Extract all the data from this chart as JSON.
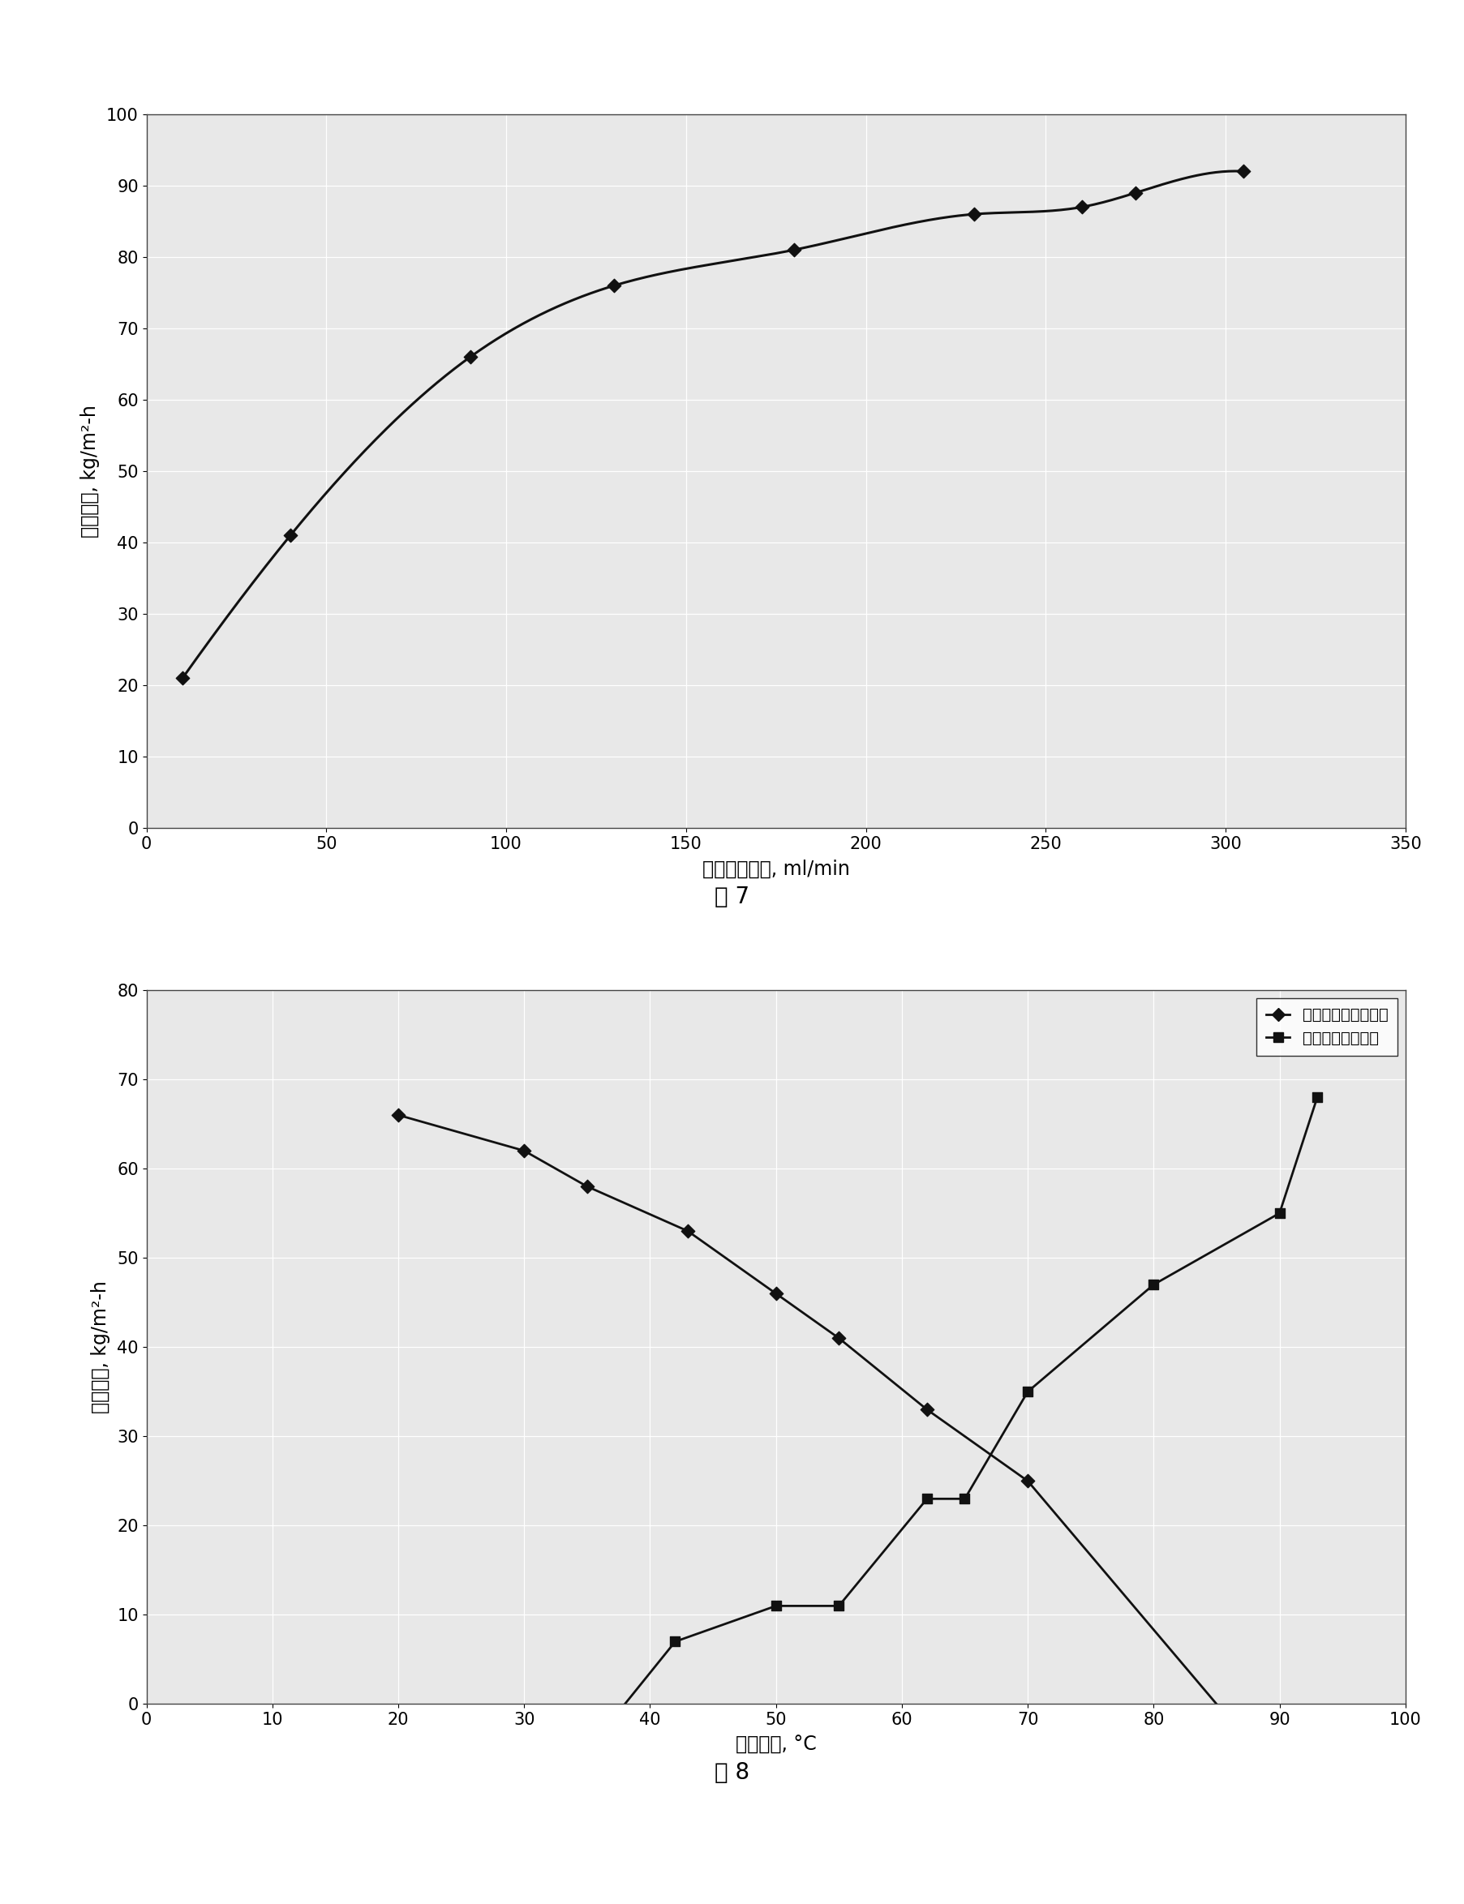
{
  "fig7": {
    "title": "图 7",
    "xlabel": "盐水间隙流速, ml/min",
    "ylabel": "产水通量, kg/m²-h",
    "xlim": [
      0,
      350
    ],
    "ylim": [
      0,
      100
    ],
    "xticks": [
      0,
      50,
      100,
      150,
      200,
      250,
      300,
      350
    ],
    "yticks": [
      0,
      10,
      20,
      30,
      40,
      50,
      60,
      70,
      80,
      90,
      100
    ],
    "data_x": [
      10,
      40,
      90,
      130,
      180,
      230,
      260,
      275,
      305
    ],
    "data_y": [
      21,
      41,
      66,
      76,
      81,
      86,
      87,
      89,
      92
    ],
    "marker": "D",
    "color": "#111111",
    "linewidth": 2.2
  },
  "fig8": {
    "title": "图 8",
    "xlabel": "进口温度, °C",
    "ylabel": "产水通量, kg/m²-h",
    "xlim": [
      0,
      100
    ],
    "ylim": [
      0,
      80
    ],
    "xticks": [
      0,
      10,
      20,
      30,
      40,
      50,
      60,
      70,
      80,
      90,
      100
    ],
    "yticks": [
      0,
      10,
      20,
      30,
      40,
      50,
      60,
      70,
      80
    ],
    "series1": {
      "label": "冷却水温度影响曲线",
      "x": [
        20,
        30,
        35,
        43,
        50,
        55,
        62,
        70,
        85
      ],
      "y": [
        66,
        62,
        58,
        53,
        46,
        41,
        33,
        25,
        0
      ],
      "marker": "D",
      "color": "#111111"
    },
    "series2": {
      "label": "盐水温度影响曲线",
      "x": [
        38,
        42,
        50,
        55,
        62,
        65,
        70,
        80,
        90,
        93
      ],
      "y": [
        0,
        7,
        11,
        11,
        23,
        23,
        35,
        47,
        55,
        68
      ],
      "marker": "s",
      "color": "#111111"
    },
    "linewidth": 2.0,
    "legend_loc": "upper right"
  },
  "background_color": "#e8e8e8",
  "grid_color": "#ffffff",
  "fig_caption_fontsize": 20
}
